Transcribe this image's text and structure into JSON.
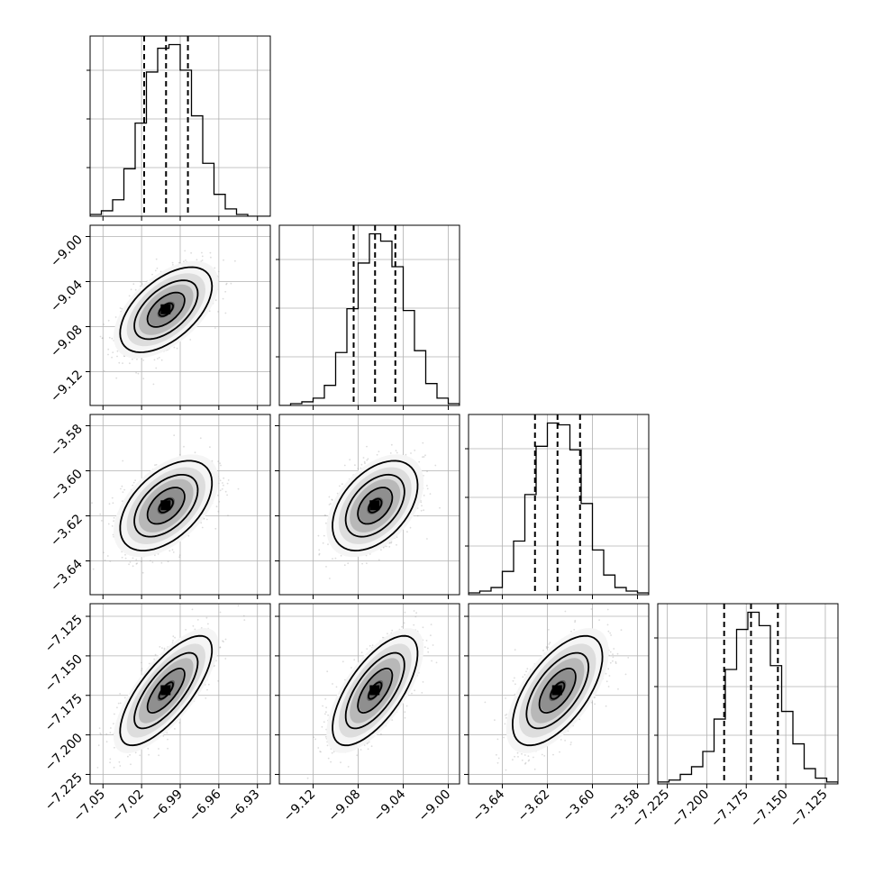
{
  "chart_data": {
    "type": "corner",
    "grid": true,
    "parameters": [
      {
        "range": [
          -7.06,
          -6.92
        ],
        "ticks": [
          {
            "value": -7.05,
            "label": "−7.05"
          },
          {
            "value": -7.02,
            "label": "−7.02"
          },
          {
            "value": -6.99,
            "label": "−6.99"
          },
          {
            "value": -6.96,
            "label": "−6.96"
          },
          {
            "value": -6.93,
            "label": "−6.93"
          }
        ],
        "hist": [
          1,
          3,
          9,
          26,
          51,
          79,
          92,
          94,
          80,
          55,
          29,
          12,
          4,
          1,
          0,
          0
        ],
        "quantiles": [
          -7.018,
          -7.001,
          -6.984
        ]
      },
      {
        "range": [
          -9.15,
          -8.99
        ],
        "ticks": [
          {
            "value": -9.12,
            "label": "−9.12"
          },
          {
            "value": -9.08,
            "label": "−9.08"
          },
          {
            "value": -9.04,
            "label": "−9.04"
          },
          {
            "value": -9.0,
            "label": "−9.00"
          }
        ],
        "hist": [
          0,
          1,
          2,
          4,
          11,
          29,
          53,
          78,
          94,
          90,
          76,
          52,
          30,
          12,
          4,
          1
        ],
        "quantiles": [
          -9.084,
          -9.065,
          -9.047
        ]
      },
      {
        "range": [
          -3.655,
          -3.575
        ],
        "ticks": [
          {
            "value": -3.64,
            "label": "−3.64"
          },
          {
            "value": -3.62,
            "label": "−3.62"
          },
          {
            "value": -3.6,
            "label": "−3.60"
          },
          {
            "value": -3.58,
            "label": "−3.58"
          }
        ],
        "hist": [
          1,
          2,
          4,
          13,
          30,
          56,
          83,
          96,
          95,
          81,
          51,
          25,
          11,
          4,
          2,
          1
        ],
        "quantiles": [
          -3.6255,
          -3.6155,
          -3.6055
        ]
      },
      {
        "range": [
          -7.231,
          -7.117
        ],
        "ticks": [
          {
            "value": -7.225,
            "label": "−7.225"
          },
          {
            "value": -7.2,
            "label": "−7.200"
          },
          {
            "value": -7.175,
            "label": "−7.175"
          },
          {
            "value": -7.15,
            "label": "−7.150"
          },
          {
            "value": -7.125,
            "label": "−7.125"
          }
        ],
        "hist": [
          1,
          2,
          5,
          9,
          17,
          34,
          60,
          81,
          90,
          83,
          62,
          38,
          21,
          8,
          3,
          1
        ],
        "quantiles": [
          -7.189,
          -7.172,
          -7.155
        ]
      }
    ],
    "means": [
      -7.001,
      -9.065,
      -3.6155,
      -7.172
    ],
    "stds": [
      0.017,
      0.018,
      0.0095,
      0.0165
    ],
    "correlations": [
      [
        1.0,
        0.55,
        0.5,
        0.74
      ],
      [
        0.55,
        1.0,
        0.45,
        0.68
      ],
      [
        0.5,
        0.45,
        1.0,
        0.62
      ],
      [
        0.74,
        0.68,
        0.62,
        1.0
      ]
    ]
  }
}
